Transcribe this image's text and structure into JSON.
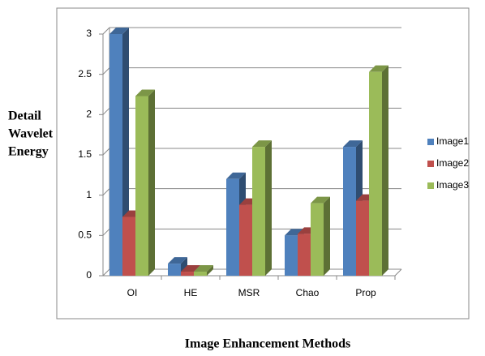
{
  "chart_data": {
    "type": "bar3d",
    "y_label": [
      "Detail",
      "Wavelet",
      "Energy"
    ],
    "x_label": "Image Enhancement Methods",
    "categories": [
      "OI",
      "HE",
      "MSR",
      "Chao",
      "Prop"
    ],
    "series": [
      {
        "name": "Image1",
        "color": "#4f81bd",
        "values": [
          3,
          0.15,
          1.2,
          0.5,
          1.6
        ]
      },
      {
        "name": "Image2",
        "color": "#c0504d",
        "values": [
          0.73,
          0.05,
          0.88,
          0.52,
          0.93
        ]
      },
      {
        "name": "Image3",
        "color": "#9bbb59",
        "values": [
          2.23,
          0.05,
          1.6,
          0.9,
          2.53
        ]
      }
    ],
    "ylim": [
      0,
      3
    ],
    "yticks": [
      0,
      0.5,
      1,
      1.5,
      2,
      2.5,
      3
    ],
    "grid": true
  }
}
